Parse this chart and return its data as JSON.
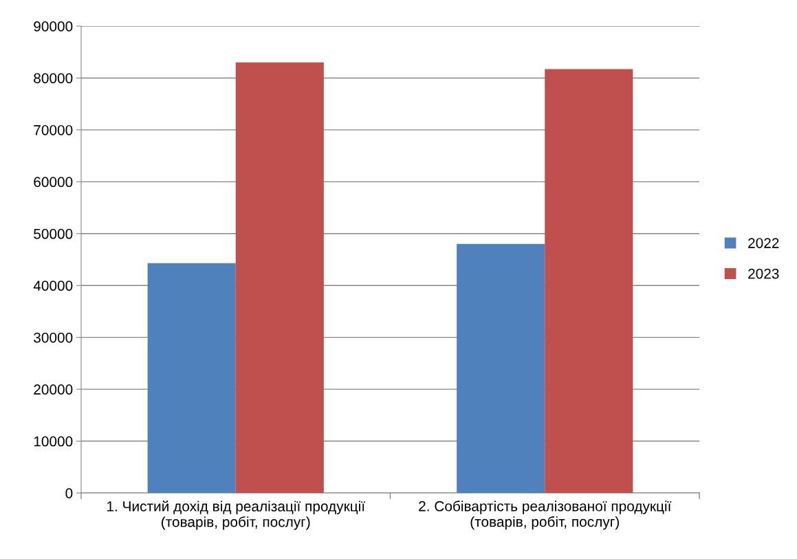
{
  "chart_data": {
    "type": "bar",
    "categories": [
      "1. Чистий дохід від реалізації продукції\n(товарів, робіт, послуг)",
      "2. Собівартість реалізованої продукції\n(товарів, робіт, послуг)"
    ],
    "series": [
      {
        "name": "2022",
        "color": "#4f81bd",
        "values": [
          44300,
          48000
        ]
      },
      {
        "name": "2023",
        "color": "#c0504d",
        "values": [
          83000,
          81700
        ]
      }
    ],
    "ylim": [
      0,
      90000
    ],
    "yticks": [
      0,
      10000,
      20000,
      30000,
      40000,
      50000,
      60000,
      70000,
      80000,
      90000
    ],
    "grid": "y",
    "legend": "right"
  }
}
